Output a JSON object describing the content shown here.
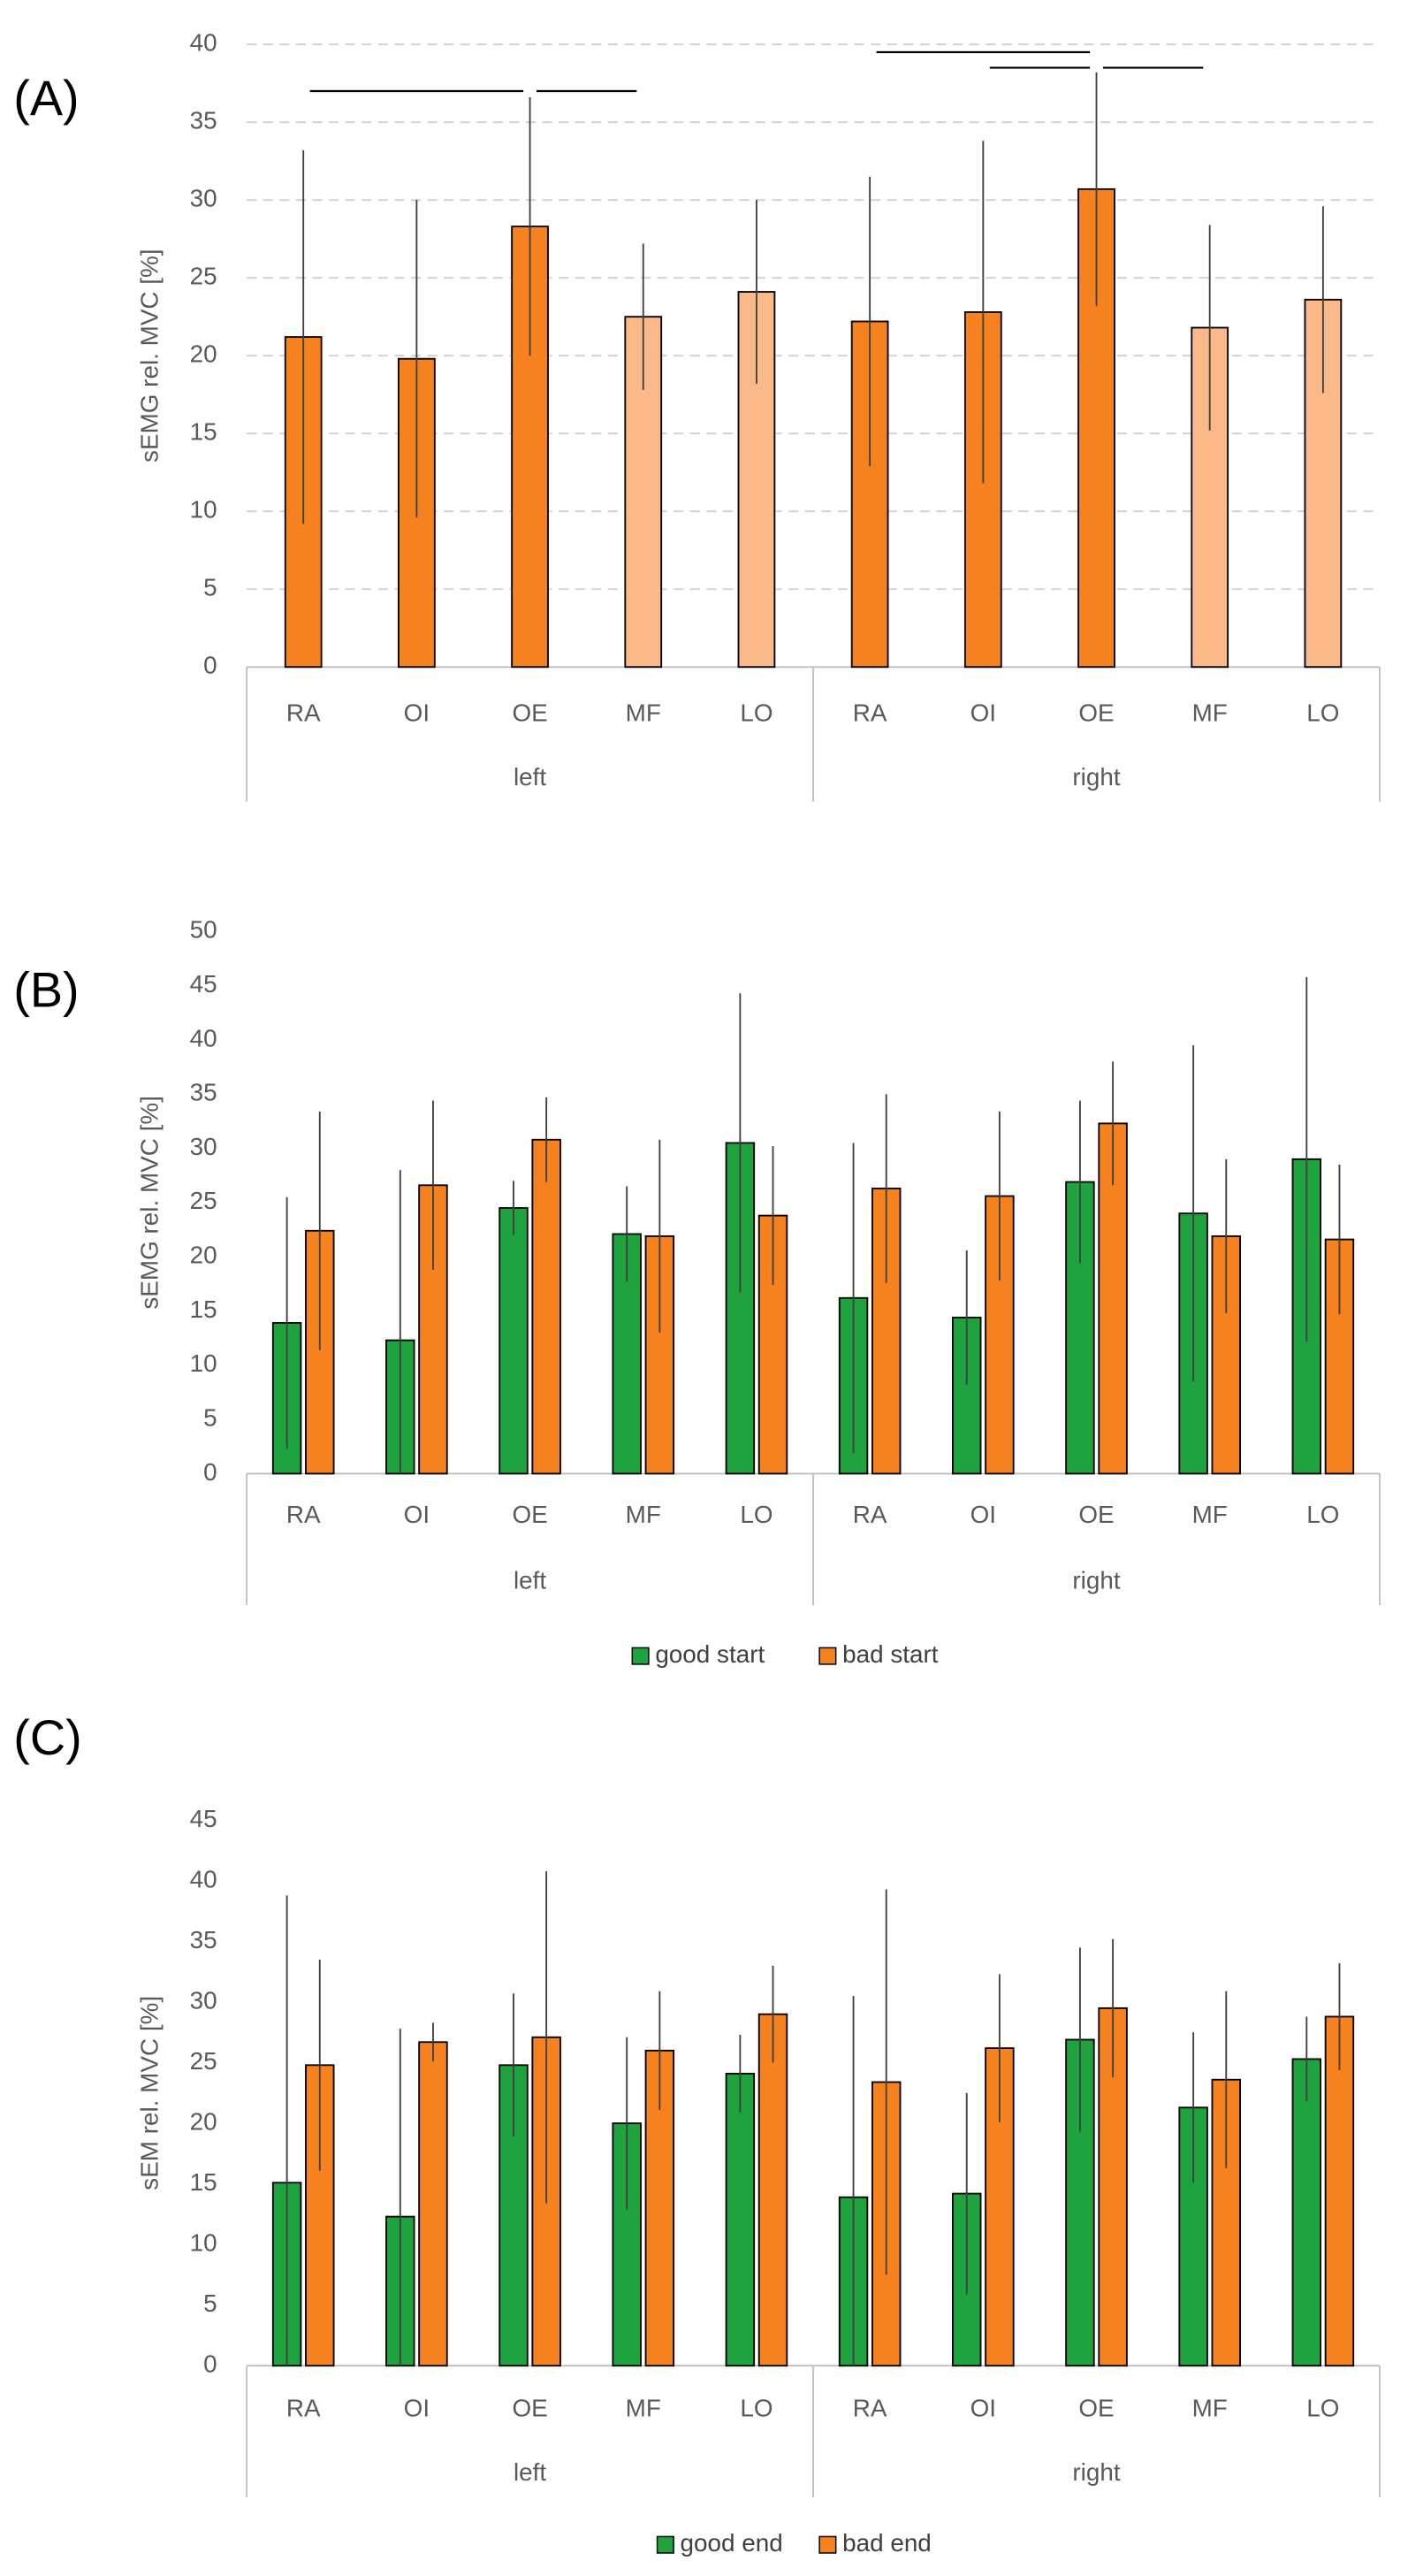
{
  "chart_data": [
    {
      "type": "bar",
      "label": "(A)",
      "ylabel": "sEMG rel. MVC [%]",
      "categories": [
        "RA",
        "OI",
        "OE",
        "MF",
        "LO",
        "RA",
        "OI",
        "OE",
        "MF",
        "LO"
      ],
      "groups": [
        "left",
        "right"
      ],
      "ylim": [
        0,
        40
      ],
      "yticks": [
        0,
        5,
        10,
        15,
        20,
        25,
        30,
        35,
        40
      ],
      "grid": true,
      "series": [
        {
          "colors": [
            "#f5821f",
            "#f5821f",
            "#f5821f",
            "#fbb98a",
            "#fbb98a",
            "#f5821f",
            "#f5821f",
            "#f5821f",
            "#fbb98a",
            "#fbb98a"
          ],
          "values": [
            21.2,
            19.8,
            28.3,
            22.5,
            24.1,
            22.2,
            22.8,
            30.7,
            21.8,
            23.6
          ],
          "errors": [
            12,
            10.2,
            8.3,
            4.7,
            5.9,
            9.3,
            11,
            7.5,
            6.6,
            6
          ]
        }
      ],
      "significance": [
        {
          "between": [
            0,
            2
          ],
          "y": 37
        },
        {
          "between": [
            2,
            3
          ],
          "y": 37
        },
        {
          "between": [
            5,
            7
          ],
          "y": 39.5
        },
        {
          "between": [
            6,
            7
          ],
          "y": 38.5
        },
        {
          "between": [
            7,
            8
          ],
          "y": 38.5
        }
      ]
    },
    {
      "type": "bar",
      "label": "(B)",
      "ylabel": "sEMG rel. MVC [%]",
      "categories": [
        "RA",
        "OI",
        "OE",
        "MF",
        "LO",
        "RA",
        "OI",
        "OE",
        "MF",
        "LO"
      ],
      "groups": [
        "left",
        "right"
      ],
      "ylim": [
        0,
        50
      ],
      "yticks": [
        0,
        5,
        10,
        15,
        20,
        25,
        30,
        35,
        40,
        45,
        50
      ],
      "grid": false,
      "series": [
        {
          "name": "good start",
          "color": "#1fa33f",
          "values": [
            13.9,
            12.3,
            24.5,
            22.1,
            30.5,
            16.2,
            14.4,
            26.9,
            24.0,
            29.0
          ],
          "errors": [
            11.6,
            15.7,
            2.5,
            4.4,
            13.8,
            14.3,
            6.2,
            7.5,
            15.5,
            16.8
          ]
        },
        {
          "name": "bad start",
          "color": "#f5821f",
          "values": [
            22.4,
            26.6,
            30.8,
            21.9,
            23.8,
            26.3,
            25.6,
            32.3,
            21.9,
            21.6
          ],
          "errors": [
            11,
            7.8,
            3.9,
            8.9,
            6.4,
            8.7,
            7.8,
            5.7,
            7.1,
            6.9
          ]
        }
      ]
    },
    {
      "type": "bar",
      "label": "(C)",
      "ylabel": "sEM rel. MVC [%]",
      "categories": [
        "RA",
        "OI",
        "OE",
        "MF",
        "LO",
        "RA",
        "OI",
        "OE",
        "MF",
        "LO"
      ],
      "groups": [
        "left",
        "right"
      ],
      "ylim": [
        0,
        45
      ],
      "yticks": [
        0,
        5,
        10,
        15,
        20,
        25,
        30,
        35,
        40,
        45
      ],
      "grid": false,
      "series": [
        {
          "name": "good end",
          "color": "#1fa33f",
          "values": [
            15.1,
            12.3,
            24.8,
            20.0,
            24.1,
            13.9,
            14.2,
            26.9,
            21.3,
            25.3
          ],
          "errors": [
            23.7,
            15.5,
            5.9,
            7.1,
            3.2,
            16.6,
            8.3,
            7.6,
            6.2,
            3.5
          ]
        },
        {
          "name": "bad end",
          "color": "#f5821f",
          "values": [
            24.8,
            26.7,
            27.1,
            26.0,
            29.0,
            23.4,
            26.2,
            29.5,
            23.6,
            28.8
          ],
          "errors": [
            8.7,
            1.6,
            13.7,
            4.9,
            4.0,
            15.9,
            6.1,
            5.7,
            7.3,
            4.4
          ]
        }
      ]
    }
  ]
}
